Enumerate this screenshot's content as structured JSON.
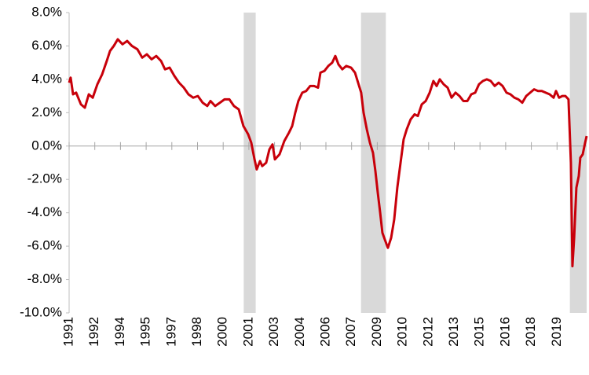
{
  "chart_data": {
    "type": "line",
    "x": [
      1991.0,
      1991.09,
      1991.23,
      1991.41,
      1991.69,
      1991.92,
      1992.15,
      1992.38,
      1992.65,
      1992.93,
      1993.2,
      1993.39,
      1993.61,
      1993.84,
      1994.12,
      1994.39,
      1994.67,
      1994.99,
      1995.27,
      1995.54,
      1995.82,
      1996.09,
      1996.37,
      1996.6,
      1996.87,
      1997.15,
      1997.42,
      1997.7,
      1997.97,
      1998.25,
      1998.52,
      1998.8,
      1999.07,
      1999.26,
      1999.53,
      1999.81,
      2000.08,
      2000.36,
      2000.63,
      2000.91,
      2001.18,
      2001.46,
      2001.64,
      2001.83,
      2001.96,
      2002.15,
      2002.28,
      2002.51,
      2002.7,
      2002.88,
      2003.02,
      2003.29,
      2003.57,
      2003.84,
      2004.03,
      2004.21,
      2004.39,
      2004.62,
      2004.85,
      2005.08,
      2005.31,
      2005.54,
      2005.68,
      2005.91,
      2006.14,
      2006.37,
      2006.55,
      2006.73,
      2006.96,
      2007.19,
      2007.47,
      2007.7,
      2007.88,
      2008.06,
      2008.2,
      2008.39,
      2008.57,
      2008.75,
      2008.89,
      2009.03,
      2009.17,
      2009.3,
      2009.44,
      2009.62,
      2009.81,
      2009.99,
      2010.17,
      2010.36,
      2010.54,
      2010.72,
      2010.95,
      2011.18,
      2011.37,
      2011.6,
      2011.83,
      2012.06,
      2012.28,
      2012.47,
      2012.65,
      2012.88,
      2013.11,
      2013.34,
      2013.57,
      2013.8,
      2014.03,
      2014.26,
      2014.49,
      2014.72,
      2014.94,
      2015.17,
      2015.4,
      2015.63,
      2015.86,
      2016.09,
      2016.32,
      2016.55,
      2016.78,
      2017.01,
      2017.24,
      2017.47,
      2017.7,
      2017.93,
      2018.16,
      2018.39,
      2018.61,
      2018.84,
      2019.07,
      2019.3,
      2019.44,
      2019.62,
      2019.81,
      2019.99,
      2020.17,
      2020.31,
      2020.4,
      2020.5,
      2020.63,
      2020.77,
      2020.86,
      2021.0,
      2021.14,
      2021.23
    ],
    "series": [
      {
        "color": "#c8000a",
        "values": [
          3.8,
          4.1,
          3.1,
          3.2,
          2.5,
          2.3,
          3.1,
          2.9,
          3.7,
          4.3,
          5.1,
          5.7,
          6.0,
          6.4,
          6.1,
          6.3,
          6.0,
          5.8,
          5.3,
          5.5,
          5.2,
          5.4,
          5.1,
          4.6,
          4.7,
          4.2,
          3.8,
          3.5,
          3.1,
          2.9,
          3.0,
          2.6,
          2.4,
          2.7,
          2.4,
          2.6,
          2.8,
          2.8,
          2.4,
          2.2,
          1.2,
          0.7,
          0.2,
          -0.8,
          -1.4,
          -0.9,
          -1.2,
          -1.0,
          -0.2,
          0.1,
          -0.8,
          -0.5,
          0.3,
          0.8,
          1.2,
          2.0,
          2.7,
          3.2,
          3.3,
          3.6,
          3.6,
          3.5,
          4.4,
          4.5,
          4.8,
          5.0,
          5.4,
          4.9,
          4.6,
          4.8,
          4.7,
          4.4,
          3.8,
          3.2,
          2.0,
          1.0,
          0.2,
          -0.4,
          -1.5,
          -2.8,
          -4.0,
          -5.2,
          -5.6,
          -6.1,
          -5.5,
          -4.4,
          -2.5,
          -1.0,
          0.4,
          1.0,
          1.6,
          1.9,
          1.8,
          2.5,
          2.7,
          3.2,
          3.9,
          3.6,
          4.0,
          3.7,
          3.5,
          2.9,
          3.2,
          3.0,
          2.7,
          2.7,
          3.1,
          3.2,
          3.7,
          3.9,
          4.0,
          3.9,
          3.6,
          3.8,
          3.6,
          3.2,
          3.1,
          2.9,
          2.8,
          2.6,
          3.0,
          3.2,
          3.4,
          3.3,
          3.3,
          3.2,
          3.1,
          2.9,
          3.3,
          2.9,
          3.0,
          3.0,
          2.8,
          -1.0,
          -7.2,
          -5.5,
          -2.5,
          -1.8,
          -0.7,
          -0.5,
          0.2,
          0.6
        ]
      }
    ],
    "recessions": [
      [
        2001.2,
        2001.9
      ],
      [
        2008.05,
        2009.5
      ],
      [
        2020.25,
        2021.23
      ]
    ],
    "recession_color": "#d9d9d9",
    "xlim": [
      1991,
      2021.23
    ],
    "xticks": [
      1991,
      {
        "value": 1992.5,
        "label": "1992"
      },
      1994,
      {
        "value": 1995.5,
        "label": "1995"
      },
      1997,
      {
        "value": 1998.5,
        "label": "1998"
      },
      2000,
      {
        "value": 2001.5,
        "label": "2001"
      },
      2003,
      {
        "value": 2004.5,
        "label": "2004"
      },
      2006,
      {
        "value": 2007.5,
        "label": "2007"
      },
      2009,
      {
        "value": 2010.5,
        "label": "2010"
      },
      2012,
      {
        "value": 2013.5,
        "label": "2013"
      },
      2015,
      {
        "value": 2016.5,
        "label": "2016"
      },
      2018,
      {
        "value": 2019.5,
        "label": "2019"
      }
    ],
    "ylim": [
      -10,
      8
    ],
    "yticks": [
      {
        "value": -10,
        "label": "-10.0%"
      },
      {
        "value": -8,
        "label": "-8.0%"
      },
      {
        "value": -6,
        "label": "-6.0%"
      },
      {
        "value": -4,
        "label": "-4.0%"
      },
      {
        "value": -2,
        "label": "-2.0%"
      },
      {
        "value": 0,
        "label": "0.0%"
      },
      {
        "value": 2,
        "label": "2.0%"
      },
      {
        "value": 4,
        "label": "4.0%"
      },
      {
        "value": 6,
        "label": "6.0%"
      },
      {
        "value": 8,
        "label": "8.0%"
      }
    ]
  }
}
